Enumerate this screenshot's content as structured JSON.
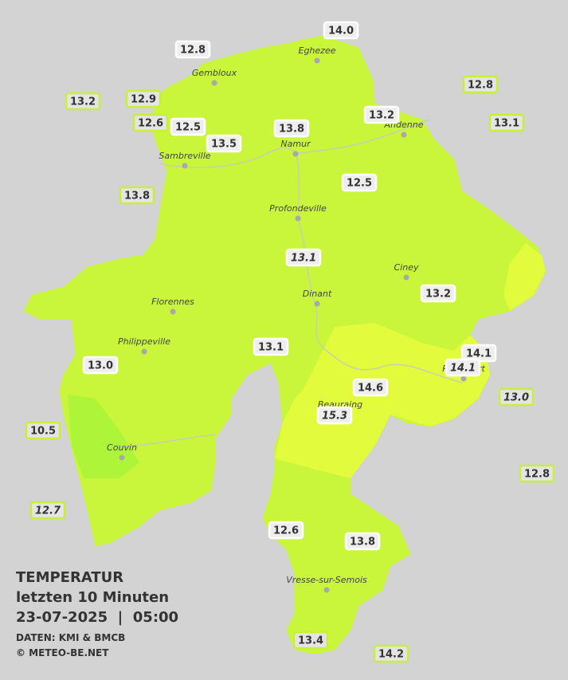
{
  "map": {
    "stations": [
      {
        "label": "14.0",
        "italic": false,
        "border": "#ffffff"
      },
      {
        "label": "12.8",
        "italic": false,
        "border": "#ffffff"
      },
      {
        "label": "12.8",
        "italic": false,
        "border": "#c8f03a"
      },
      {
        "label": "13.2",
        "italic": false,
        "border": "#c8f03a"
      },
      {
        "label": "12.9",
        "italic": false,
        "border": "#c8f03a"
      },
      {
        "label": "12.6",
        "italic": false,
        "border": "#c8f03a"
      },
      {
        "label": "12.5",
        "italic": false,
        "border": "#ffffff"
      },
      {
        "label": "13.5",
        "italic": false,
        "border": "#ffffff"
      },
      {
        "label": "13.8",
        "italic": false,
        "border": "#ffffff"
      },
      {
        "label": "13.2",
        "italic": false,
        "border": "#ffffff"
      },
      {
        "label": "13.1",
        "italic": false,
        "border": "#c8f03a"
      },
      {
        "label": "12.5",
        "italic": false,
        "border": "#ffffff"
      },
      {
        "label": "13.8",
        "italic": false,
        "border": "#c8f03a"
      },
      {
        "label": "13.1",
        "italic": true,
        "border": "#ffffff"
      },
      {
        "label": "13.2",
        "italic": false,
        "border": "#ffffff"
      },
      {
        "label": "13.1",
        "italic": false,
        "border": "#ffffff"
      },
      {
        "label": "14.1",
        "italic": false,
        "border": "#ffffff"
      },
      {
        "label": "14.1",
        "italic": true,
        "border": "#ffffff"
      },
      {
        "label": "13.0",
        "italic": false,
        "border": "#ffffff"
      },
      {
        "label": "14.6",
        "italic": false,
        "border": "#ffffff"
      },
      {
        "label": "13.0",
        "italic": true,
        "border": "#c8f03a"
      },
      {
        "label": "15.3",
        "italic": true,
        "border": "#ffffff"
      },
      {
        "label": "10.5",
        "italic": false,
        "border": "#c8f03a"
      },
      {
        "label": "12.8",
        "italic": false,
        "border": "#c8f03a"
      },
      {
        "label": "12.7",
        "italic": true,
        "border": "#c8f03a"
      },
      {
        "label": "12.6",
        "italic": false,
        "border": "#ffffff"
      },
      {
        "label": "13.8",
        "italic": false,
        "border": "#ffffff"
      },
      {
        "label": "13.4",
        "italic": false,
        "border": "#c8f03a"
      },
      {
        "label": "14.2",
        "italic": false,
        "border": "#c8f03a"
      }
    ],
    "cities": [
      "Eghezee",
      "Gembloux",
      "Andenne",
      "Namur",
      "Sambreville",
      "Profondeville",
      "Ciney",
      "Dinant",
      "Florennes",
      "Philippeville",
      "Rochefort",
      "Beauraing",
      "Couvin",
      "Vresse-sur-Semois"
    ],
    "legend": {
      "title": "TEMPERATUR",
      "subtitle": "letzten 10 Minuten",
      "date": "23-07-2025  |  05:00",
      "source": "DATEN: KMI & BMCB",
      "copyright": "© METEO-BE.NET"
    }
  }
}
